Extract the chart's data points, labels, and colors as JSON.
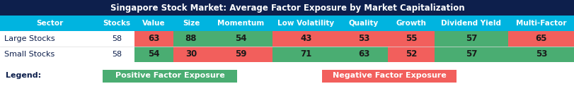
{
  "title": "Singapore Stock Market: Average Factor Exposure by Market Capitalization",
  "title_bg": "#0d1f4c",
  "title_color": "white",
  "header_bg": "#00b4e0",
  "header_color": "white",
  "columns": [
    "Sector",
    "Stocks",
    "Value",
    "Size",
    "Momentum",
    "Low Volatility",
    "Quality",
    "Growth",
    "Dividend Yield",
    "Multi-Factor"
  ],
  "rows": [
    {
      "label": "Large Stocks",
      "stocks": "58",
      "values": [
        63,
        88,
        54,
        43,
        53,
        55,
        57,
        65
      ]
    },
    {
      "label": "Small Stocks",
      "stocks": "58",
      "values": [
        54,
        30,
        59,
        71,
        63,
        52,
        57,
        53
      ]
    }
  ],
  "positive_color": "#4aad72",
  "negative_color": "#f25f5c",
  "label_color": "#0d1f4c",
  "text_color_data": "#1a1a1a",
  "legend_label": "Legend:",
  "legend_positive": "Positive Factor Exposure",
  "legend_negative": "Negative Factor Exposure",
  "col_colors_large": [
    "negative",
    "positive",
    "positive",
    "negative",
    "negative",
    "negative",
    "positive",
    "negative"
  ],
  "col_colors_small": [
    "positive",
    "negative",
    "negative",
    "positive",
    "positive",
    "negative",
    "positive",
    "positive"
  ],
  "fig_width": 8.12,
  "fig_height": 1.29,
  "dpi": 100
}
